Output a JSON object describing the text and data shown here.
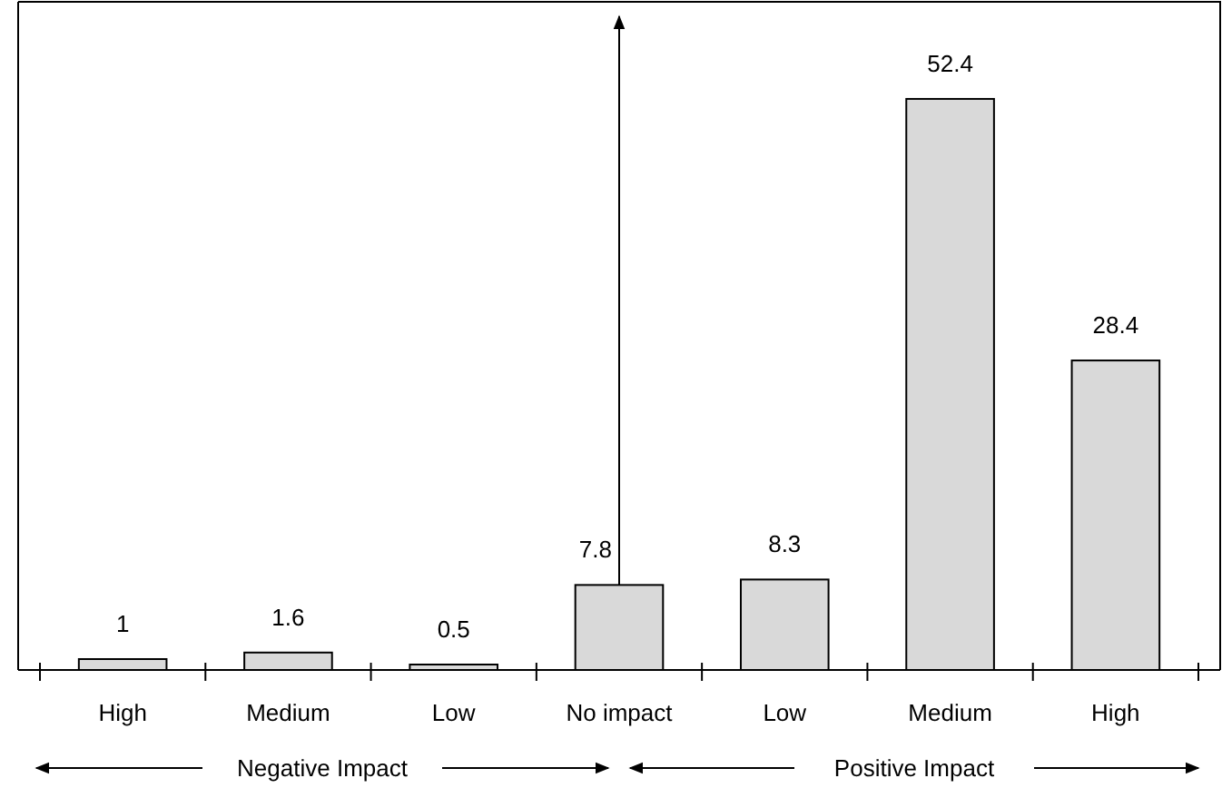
{
  "chart_data": {
    "type": "bar",
    "categories": [
      "High",
      "Medium",
      "Low",
      "No impact",
      "Low",
      "Medium",
      "High"
    ],
    "values": [
      1,
      1.6,
      0.5,
      7.8,
      8.3,
      52.4,
      28.4
    ],
    "color": "#d9d9d9",
    "data_labels": true,
    "annotations": [
      "Negative Impact",
      "Positive Impact"
    ]
  }
}
